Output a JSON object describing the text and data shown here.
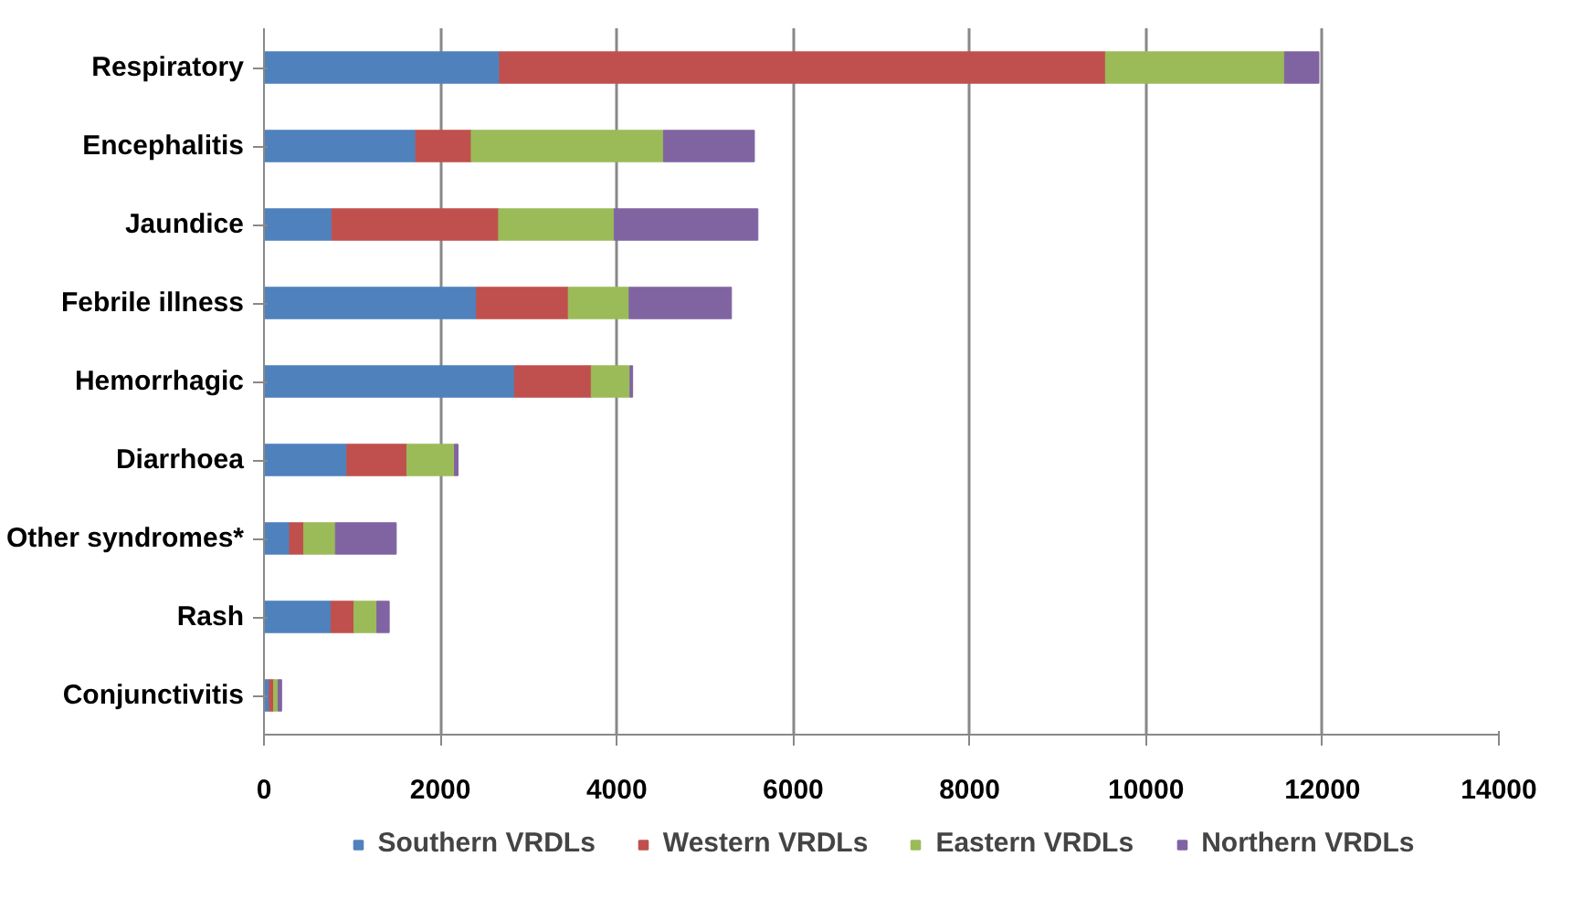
{
  "chart_data": {
    "type": "bar",
    "orientation": "horizontal",
    "stacked": true,
    "categories": [
      "Respiratory",
      "Encephalitis",
      "Jaundice",
      "Febrile illness",
      "Hemorrhagic",
      "Diarrhoea",
      "Other syndromes*",
      "Rash",
      "Conjunctivitis"
    ],
    "series": [
      {
        "name": "Southern VRDLs",
        "color": "#4f81bd",
        "values": [
          2670,
          1720,
          770,
          2410,
          2840,
          940,
          290,
          760,
          60
        ]
      },
      {
        "name": "Western VRDLs",
        "color": "#c0504d",
        "values": [
          6870,
          630,
          1890,
          1040,
          870,
          680,
          160,
          260,
          50
        ]
      },
      {
        "name": "Eastern VRDLs",
        "color": "#9bbb59",
        "values": [
          2030,
          2180,
          1310,
          690,
          440,
          540,
          360,
          260,
          50
        ]
      },
      {
        "name": "Northern VRDLs",
        "color": "#8064a2",
        "values": [
          390,
          1030,
          1630,
          1160,
          30,
          40,
          690,
          140,
          40
        ]
      }
    ],
    "xlim": [
      0,
      14000
    ],
    "xticks": [
      0,
      2000,
      4000,
      6000,
      8000,
      10000,
      12000,
      14000
    ],
    "grid": "x",
    "legend": "bottom"
  }
}
